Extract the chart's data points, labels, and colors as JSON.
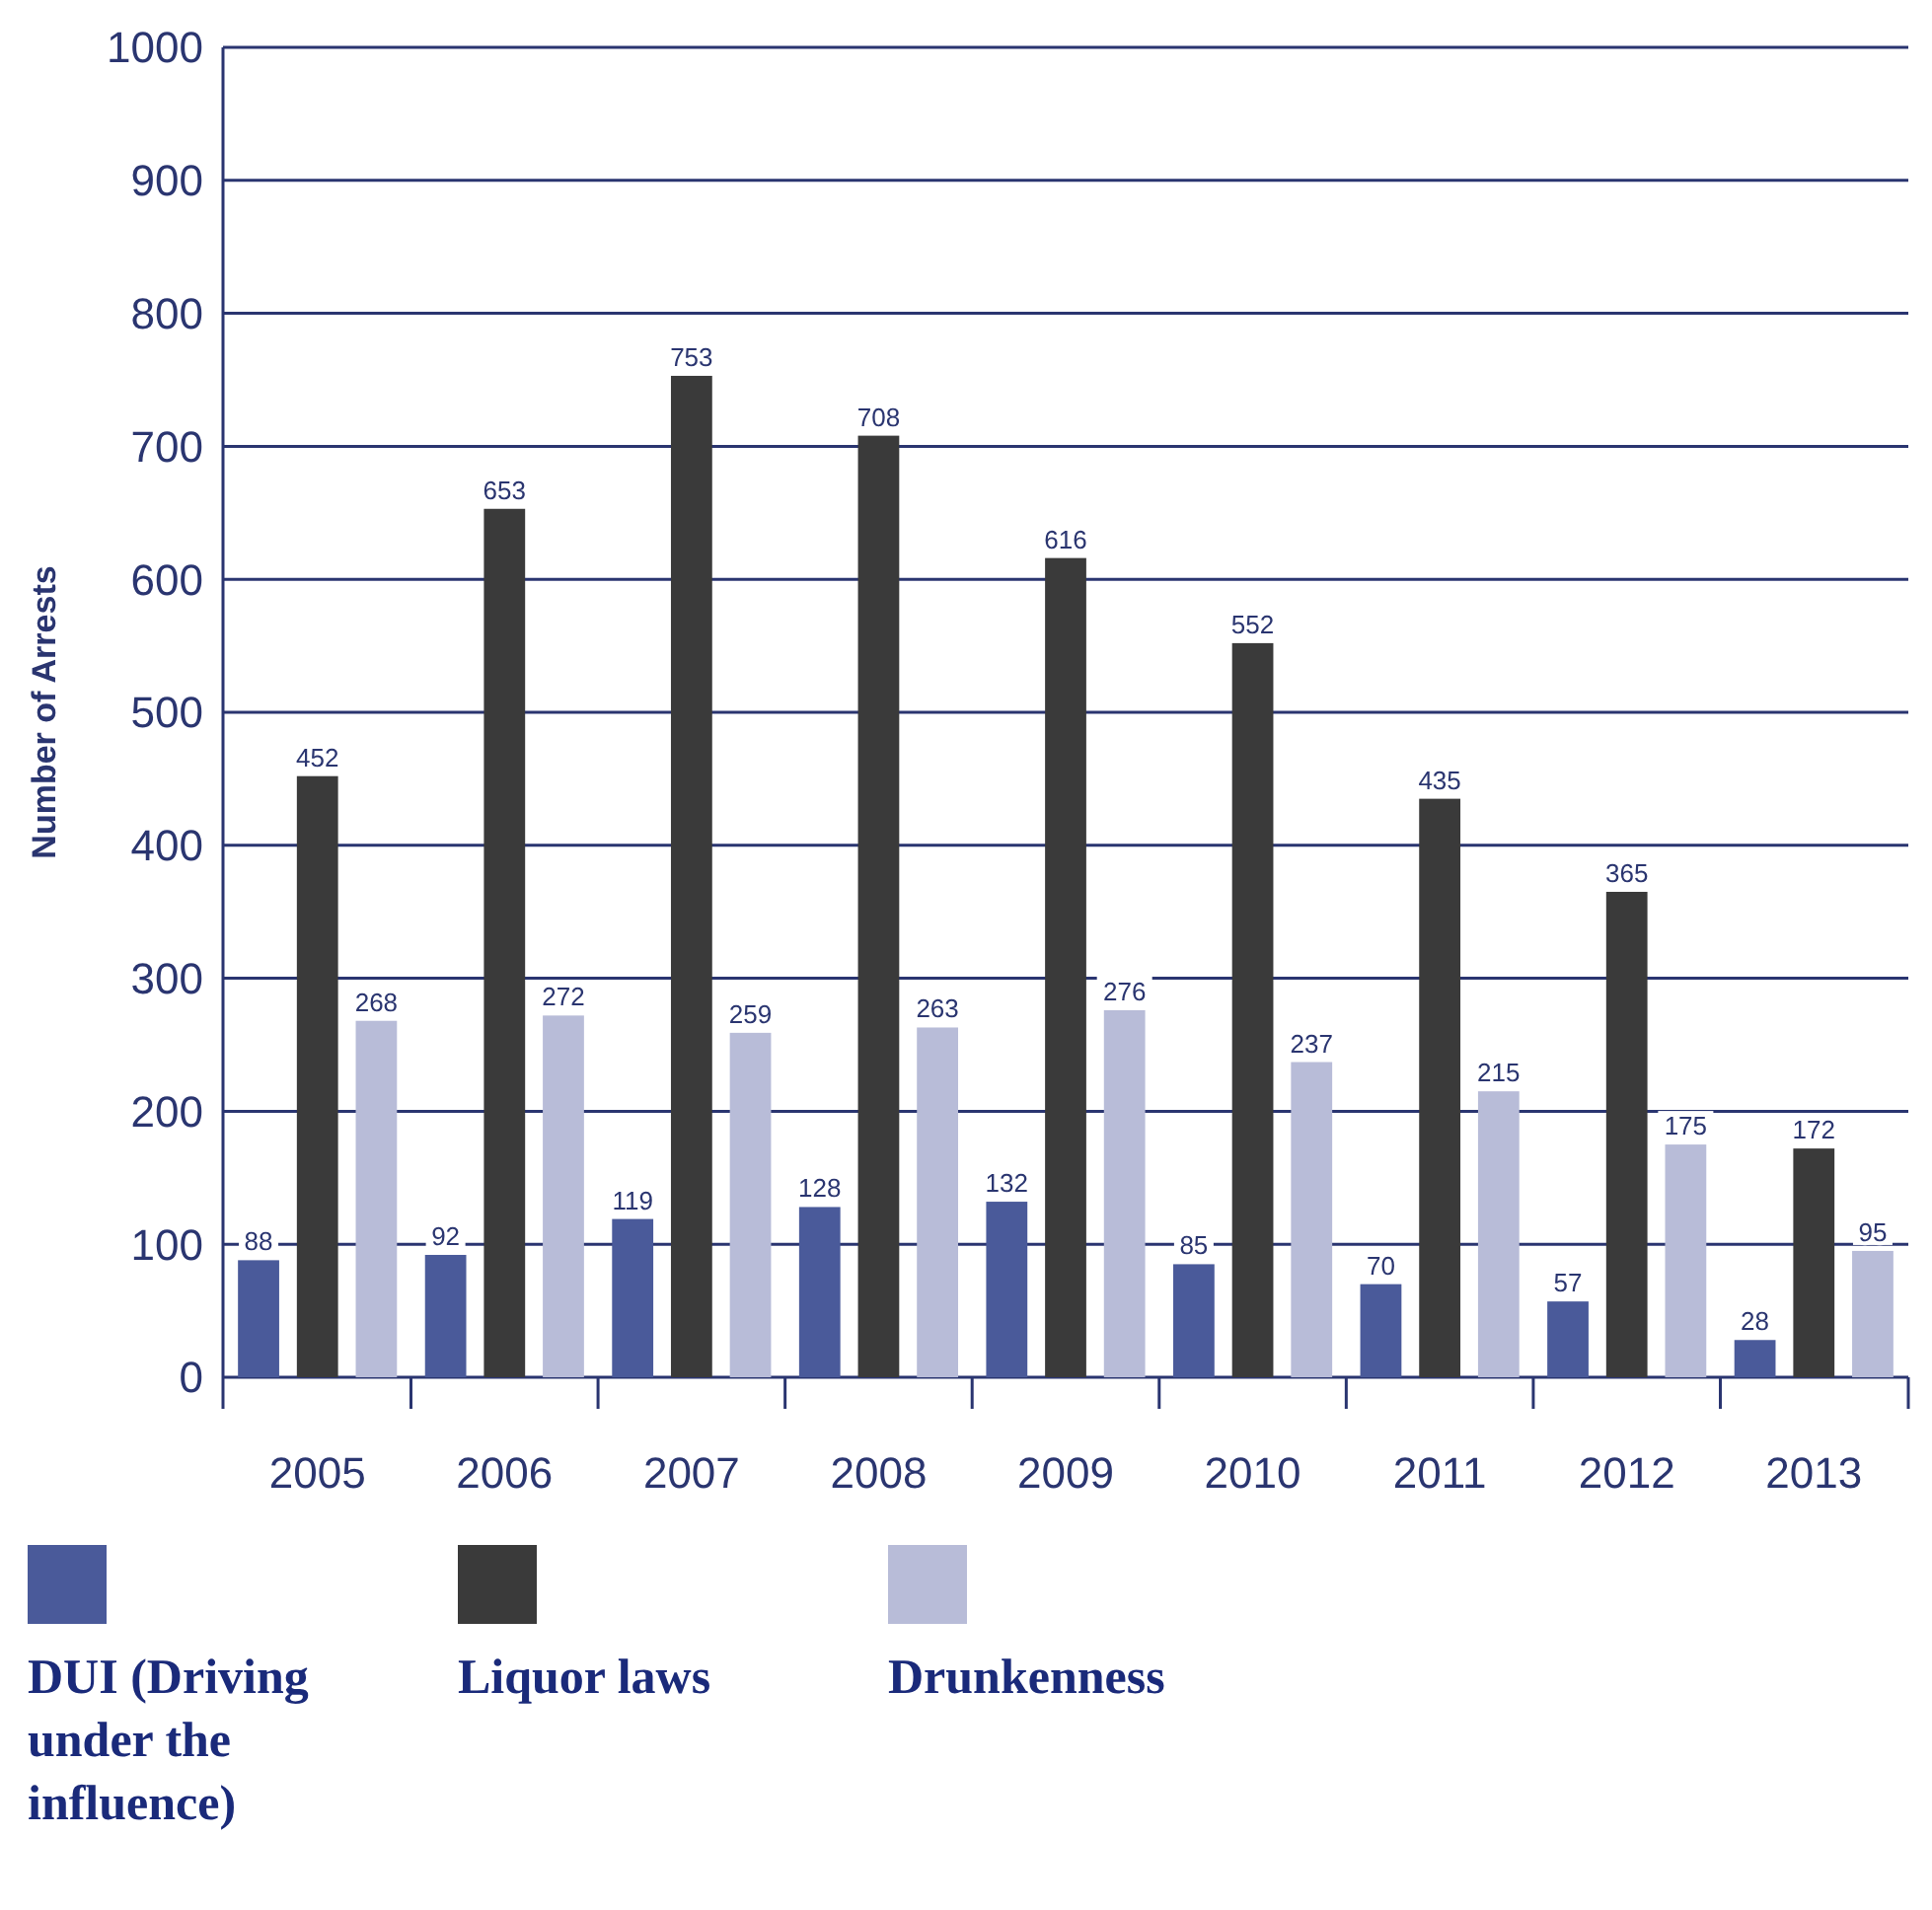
{
  "chart_data": {
    "type": "bar",
    "ylabel": "Number of Arrests",
    "categories": [
      "2005",
      "2006",
      "2007",
      "2008",
      "2009",
      "2010",
      "2011",
      "2012",
      "2013"
    ],
    "series": [
      {
        "name": "DUI (Driving under the influence)",
        "color": "#4a5a9a",
        "values": [
          88,
          92,
          119,
          128,
          132,
          85,
          70,
          57,
          28
        ]
      },
      {
        "name": "Liquor laws",
        "color": "#3a3a3a",
        "values": [
          452,
          653,
          753,
          708,
          616,
          552,
          435,
          365,
          172
        ]
      },
      {
        "name": "Drunkenness",
        "color": "#b8bcd8",
        "values": [
          268,
          272,
          259,
          263,
          276,
          237,
          215,
          175,
          95
        ]
      }
    ],
    "ylim": [
      0,
      1000
    ],
    "yticks": [
      0,
      100,
      200,
      300,
      400,
      500,
      600,
      700,
      800,
      900,
      1000
    ],
    "grid": "y",
    "legend": "bottom",
    "data_labels": true
  }
}
